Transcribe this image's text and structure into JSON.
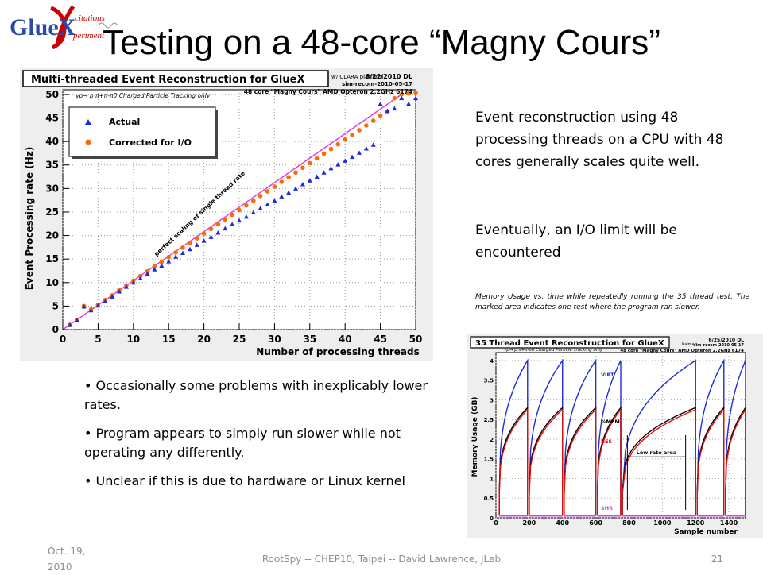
{
  "slide": {
    "title": "Testing on a 48-core “Magny Cours”",
    "desc1": "Event reconstruction using 48 processing threads on a CPU with 48 cores generally scales quite well.",
    "desc2": "Eventually, an I/O limit will be encountered",
    "caption": "Memory Usage vs. time while repeatedly running the 35 thread test. The marked area indicates one test where the program ran slower.",
    "bullets": [
      "Occasionally some problems with inexplicably lower rates.",
      "Program appears to simply run slower while not operating any differently.",
      "Unclear if this is due to hardware or Linux kernel"
    ],
    "footer": {
      "date": "Oct. 19, 2010",
      "center": "RootSpy -- CHEP10, Taipei -- David Lawrence, JLab",
      "page": "21"
    },
    "logo": {
      "text": "GlueX",
      "tagline": "citations periment"
    }
  },
  "chart_data": [
    {
      "type": "scatter",
      "title": "Multi-threaded Event Reconstruction for GlueX",
      "subtitle": "γp→ p π+π-π0  Charged Particle Tracking only",
      "annotations": [
        "6/22/2010 DL",
        "sim-recom-2010-05-17",
        "w/ CLARA platform",
        "48 core \"Magny Cours\" AMD Opteron 2.2GHz 6174",
        "perfect scaling of single thread rate"
      ],
      "xlabel": "Number of processing threads",
      "ylabel": "Event Processing rate (Hz)",
      "xlim": [
        0,
        50
      ],
      "ylim": [
        0,
        51
      ],
      "xticks": [
        0,
        5,
        10,
        15,
        20,
        25,
        30,
        35,
        40,
        45,
        50
      ],
      "yticks": [
        0,
        5,
        10,
        15,
        20,
        25,
        30,
        35,
        40,
        45,
        50
      ],
      "legend_position": "top-left",
      "colors": {
        "actual": "#1f2bd6",
        "corrected": "#ff6a00",
        "perfect": "#e040e0"
      },
      "perfect_line": {
        "x": [
          0,
          48
        ],
        "y": [
          0,
          50
        ]
      },
      "series": [
        {
          "name": "Actual",
          "marker": "triangle",
          "x": [
            1,
            2,
            3,
            4,
            5,
            6,
            7,
            8,
            9,
            10,
            11,
            12,
            13,
            14,
            15,
            16,
            17,
            18,
            19,
            20,
            21,
            22,
            23,
            24,
            25,
            26,
            27,
            28,
            29,
            30,
            31,
            32,
            33,
            34,
            35,
            36,
            37,
            38,
            39,
            40,
            41,
            42,
            43,
            44,
            45,
            46,
            47,
            48,
            49,
            50
          ],
          "y": [
            1.0,
            2.0,
            4.9,
            4.1,
            5.1,
            6.0,
            7.0,
            8.1,
            9.1,
            10.0,
            10.9,
            11.9,
            12.8,
            13.6,
            14.5,
            15.5,
            16.3,
            17.1,
            18.0,
            18.9,
            19.7,
            20.6,
            21.5,
            22.4,
            23.2,
            24.0,
            24.9,
            25.8,
            26.6,
            27.4,
            28.3,
            29.1,
            30.0,
            30.9,
            31.7,
            32.5,
            33.4,
            34.3,
            35.1,
            35.9,
            36.7,
            37.6,
            38.5,
            39.3,
            48.0,
            46.5,
            47.0,
            49.2,
            48.0,
            49.2
          ]
        },
        {
          "name": "Corrected for I/O",
          "marker": "circle",
          "x": [
            1,
            2,
            3,
            4,
            5,
            6,
            7,
            8,
            9,
            10,
            11,
            12,
            13,
            14,
            15,
            16,
            17,
            18,
            19,
            20,
            21,
            22,
            23,
            24,
            25,
            26,
            27,
            28,
            29,
            30,
            31,
            32,
            33,
            34,
            35,
            36,
            37,
            38,
            39,
            40,
            41,
            42,
            43,
            44,
            45,
            46,
            47,
            48,
            49,
            50
          ],
          "y": [
            1.0,
            2.1,
            5.0,
            4.3,
            5.3,
            6.3,
            7.3,
            8.4,
            9.4,
            10.4,
            11.4,
            12.4,
            13.4,
            14.4,
            15.4,
            16.4,
            17.4,
            18.4,
            19.4,
            20.4,
            21.4,
            22.4,
            23.4,
            24.4,
            25.4,
            26.4,
            27.4,
            28.4,
            29.4,
            30.4,
            31.4,
            32.4,
            33.4,
            34.4,
            35.4,
            36.4,
            37.4,
            38.4,
            39.4,
            40.4,
            41.4,
            42.4,
            43.4,
            44.4,
            45.5,
            46.4,
            49.2,
            50.0,
            50.2,
            50.4
          ]
        }
      ]
    },
    {
      "type": "line",
      "title": "35 Thread Event Reconstruction for GlueX",
      "subtitle": "γp→ p π+π-π0  Charged Particle Tracking only",
      "annotations": [
        "6/25/2010 DL",
        "Kalman",
        "sim-recom-2010-05-17",
        "48 core \"Magny Cours\" AMD Opteron 2.2GHz 6174",
        "Low rate area"
      ],
      "xlabel": "Sample number",
      "ylabel": "Memory Usage (GB)",
      "xlim": [
        0,
        1500
      ],
      "ylim": [
        0,
        4.2
      ],
      "xticks": [
        0,
        200,
        400,
        600,
        800,
        1000,
        1200,
        1400
      ],
      "yticks": [
        0,
        0.5,
        1,
        1.5,
        2,
        2.5,
        3,
        3.5,
        4
      ],
      "legend_position": "inline",
      "colors": {
        "VIRT": "#1f2bd6",
        "%MEM": "#000000",
        "RES": "#e01010",
        "SHR": "#e040e0"
      },
      "low_rate_area": [
        790,
        1140
      ],
      "run_starts": [
        20,
        200,
        410,
        610,
        760,
        1210,
        1380
      ],
      "run_ends": [
        190,
        400,
        600,
        750,
        1200,
        1370,
        1500
      ],
      "series": [
        {
          "name": "VIRT",
          "start": 0.6,
          "end": 4.0
        },
        {
          "name": "%MEM",
          "start": 0.7,
          "end": 2.8
        },
        {
          "name": "RES",
          "start": 0.6,
          "end": 2.75
        },
        {
          "name": "SHR",
          "start": 0.05,
          "end": 0.05
        }
      ]
    }
  ]
}
